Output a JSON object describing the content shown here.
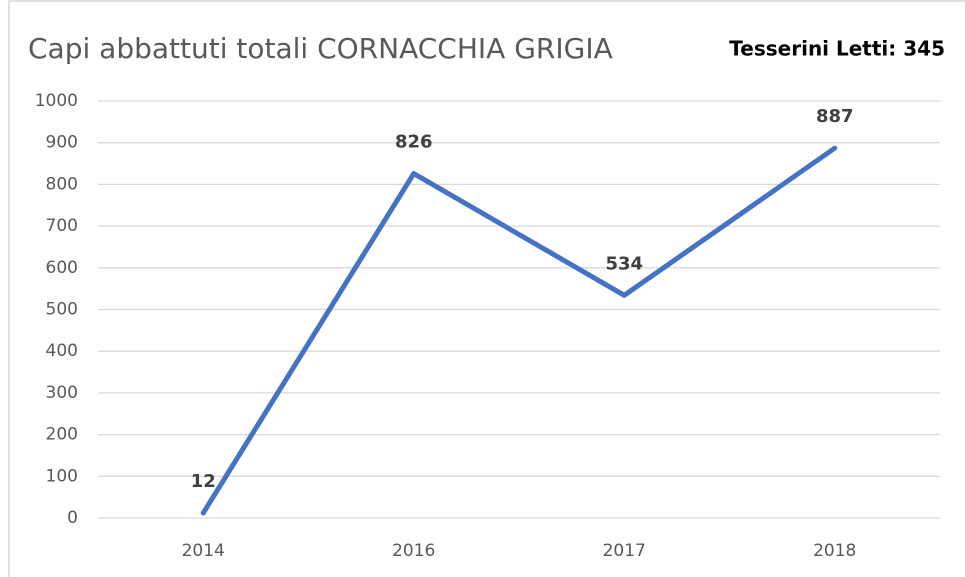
{
  "chart_data": {
    "type": "line",
    "title": "Capi abbattuti totali CORNACCHIA GRIGIA",
    "annotation": "Tesserini Letti: 345",
    "categories": [
      "2014",
      "2016",
      "2017",
      "2018"
    ],
    "series": [
      {
        "color": "#4472c4",
        "values": [
          12,
          826,
          534,
          887
        ]
      }
    ],
    "ylim": [
      0,
      1000
    ],
    "yticks": [
      0,
      100,
      200,
      300,
      400,
      500,
      600,
      700,
      800,
      900,
      1000
    ],
    "grid": true,
    "data_labels": true
  }
}
